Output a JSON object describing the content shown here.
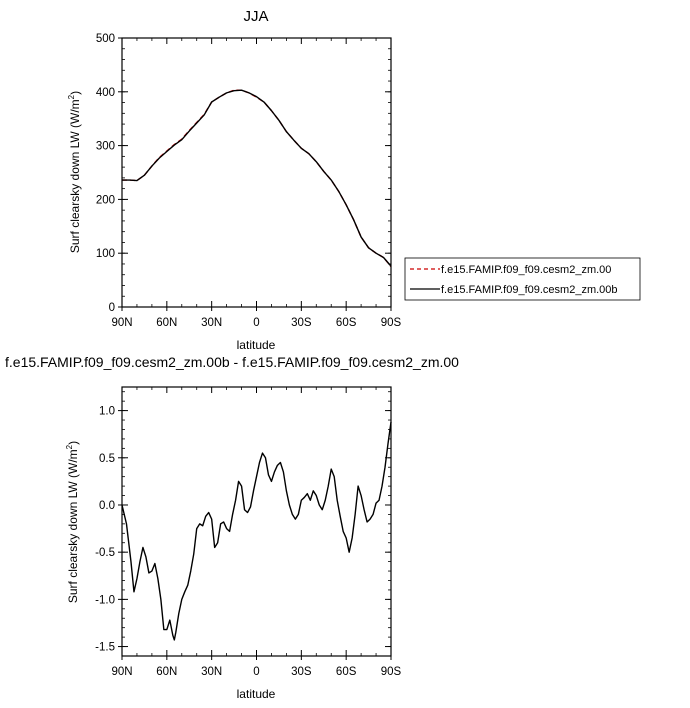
{
  "chart_data": [
    {
      "type": "line",
      "title": "JJA",
      "xlabel": "latitude",
      "ylabel": "Surf clearsky down LW (W/m",
      "ylabel_sup": "2",
      "ylabel_close": ")",
      "xlim": [
        -90,
        90
      ],
      "ylim": [
        0,
        500
      ],
      "xticks": [
        {
          "value": -90,
          "label": "90N"
        },
        {
          "value": -60,
          "label": "60N"
        },
        {
          "value": -30,
          "label": "30N"
        },
        {
          "value": 0,
          "label": "0"
        },
        {
          "value": 30,
          "label": "30S"
        },
        {
          "value": 60,
          "label": "60S"
        },
        {
          "value": 90,
          "label": "90S"
        }
      ],
      "yticks": [
        0,
        100,
        200,
        300,
        400,
        500
      ],
      "legend": "right",
      "series": [
        {
          "name": "f.e15.FAMIP.f09_f09.cesm2_zm.00",
          "color": "#cc0000",
          "dash": "dashed",
          "x": [
            -90,
            -85,
            -80,
            -75,
            -70,
            -65,
            -60,
            -55,
            -50,
            -45,
            -40,
            -35,
            -30,
            -25,
            -20,
            -15,
            -10,
            -5,
            0,
            5,
            10,
            15,
            20,
            25,
            30,
            35,
            40,
            45,
            50,
            55,
            60,
            65,
            70,
            75,
            80,
            85,
            90
          ],
          "values": [
            236,
            236,
            235,
            245,
            262,
            278,
            290,
            302,
            312,
            328,
            343,
            358,
            381,
            390,
            398,
            403,
            403,
            398,
            390,
            381,
            365,
            347,
            326,
            310,
            295,
            285,
            270,
            252,
            236,
            215,
            190,
            162,
            130,
            110,
            100,
            92,
            75
          ]
        },
        {
          "name": "f.e15.FAMIP.f09_f09.cesm2_zm.00b",
          "color": "#000000",
          "dash": "solid",
          "x": [
            -90,
            -85,
            -80,
            -75,
            -70,
            -65,
            -60,
            -55,
            -50,
            -45,
            -40,
            -35,
            -30,
            -25,
            -20,
            -15,
            -10,
            -5,
            0,
            5,
            10,
            15,
            20,
            25,
            30,
            35,
            40,
            45,
            50,
            55,
            60,
            65,
            70,
            75,
            80,
            85,
            90
          ],
          "values": [
            236,
            236,
            235,
            245,
            262,
            277,
            289,
            301,
            311,
            327,
            342,
            357,
            381,
            390,
            398,
            402,
            403,
            398,
            391,
            381,
            365,
            347,
            326,
            310,
            295,
            285,
            270,
            252,
            236,
            215,
            190,
            162,
            130,
            110,
            100,
            92,
            76
          ]
        }
      ]
    },
    {
      "type": "line",
      "title": "f.e15.FAMIP.f09_f09.cesm2_zm.00b - f.e15.FAMIP.f09_f09.cesm2_zm.00",
      "xlabel": "latitude",
      "ylabel": "Surf clearsky down LW (W/m",
      "ylabel_sup": "2",
      "ylabel_close": ")",
      "xlim": [
        -90,
        90
      ],
      "ylim": [
        -1.6,
        1.25
      ],
      "xticks": [
        {
          "value": -90,
          "label": "90N"
        },
        {
          "value": -60,
          "label": "60N"
        },
        {
          "value": -30,
          "label": "30N"
        },
        {
          "value": 0,
          "label": "0"
        },
        {
          "value": 30,
          "label": "30S"
        },
        {
          "value": 60,
          "label": "60S"
        },
        {
          "value": 90,
          "label": "90S"
        }
      ],
      "yticks": [
        {
          "value": 1.0,
          "label": "1.0"
        },
        {
          "value": 0.5,
          "label": "0.5"
        },
        {
          "value": 0.0,
          "label": "0.0"
        },
        {
          "value": -0.5,
          "label": "-0.5"
        },
        {
          "value": -1.0,
          "label": "-1.0"
        },
        {
          "value": -1.5,
          "label": "-1.5"
        }
      ],
      "series": [
        {
          "color": "#000000",
          "x": [
            -90,
            -87,
            -84,
            -82,
            -80,
            -78,
            -76,
            -74,
            -72,
            -70,
            -68,
            -66,
            -64,
            -62,
            -60,
            -58,
            -56,
            -55,
            -54,
            -52,
            -50,
            -48,
            -46,
            -44,
            -42,
            -40,
            -38,
            -36,
            -34,
            -32,
            -30,
            -28,
            -26,
            -24,
            -22,
            -20,
            -18,
            -16,
            -14,
            -12,
            -10,
            -8,
            -6,
            -4,
            -2,
            0,
            2,
            4,
            6,
            8,
            10,
            12,
            14,
            16,
            18,
            20,
            22,
            24,
            26,
            28,
            30,
            32,
            34,
            36,
            38,
            40,
            42,
            44,
            46,
            48,
            50,
            52,
            54,
            56,
            58,
            60,
            62,
            64,
            66,
            68,
            70,
            72,
            74,
            76,
            78,
            80,
            82,
            84,
            86,
            88,
            90
          ],
          "values": [
            0.0,
            -0.2,
            -0.6,
            -0.92,
            -0.78,
            -0.6,
            -0.45,
            -0.55,
            -0.72,
            -0.7,
            -0.62,
            -0.78,
            -1.0,
            -1.32,
            -1.32,
            -1.22,
            -1.38,
            -1.43,
            -1.35,
            -1.15,
            -1.0,
            -0.92,
            -0.85,
            -0.7,
            -0.52,
            -0.25,
            -0.2,
            -0.22,
            -0.12,
            -0.08,
            -0.15,
            -0.45,
            -0.4,
            -0.2,
            -0.18,
            -0.25,
            -0.28,
            -0.1,
            0.05,
            0.25,
            0.2,
            -0.05,
            -0.08,
            -0.02,
            0.15,
            0.3,
            0.45,
            0.55,
            0.5,
            0.32,
            0.25,
            0.35,
            0.42,
            0.45,
            0.35,
            0.15,
            0.0,
            -0.1,
            -0.15,
            -0.1,
            0.05,
            0.08,
            0.12,
            0.05,
            0.15,
            0.1,
            0.0,
            -0.05,
            0.05,
            0.2,
            0.38,
            0.3,
            0.05,
            -0.12,
            -0.28,
            -0.35,
            -0.5,
            -0.35,
            -0.1,
            0.2,
            0.1,
            -0.05,
            -0.18,
            -0.15,
            -0.1,
            0.02,
            0.05,
            0.2,
            0.4,
            0.65,
            0.88
          ]
        }
      ]
    }
  ]
}
